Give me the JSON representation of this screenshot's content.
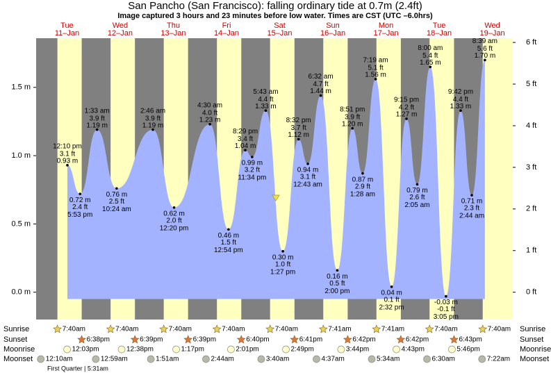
{
  "chart_data": {
    "type": "tide",
    "title": "San Pancho (San Francisco): falling  ordinary tide at 0.7m (2.4ft)",
    "subtitle": "Image captured 3 hours and 23 minutes before low water. Times are CST (UTC –6.0hrs)",
    "days": [
      {
        "weekday": "Tue",
        "date": "11–Jan"
      },
      {
        "weekday": "Wed",
        "date": "12–Jan"
      },
      {
        "weekday": "Thu",
        "date": "13–Jan"
      },
      {
        "weekday": "Fri",
        "date": "14–Jan"
      },
      {
        "weekday": "Sat",
        "date": "15–Jan"
      },
      {
        "weekday": "Sun",
        "date": "16–Jan"
      },
      {
        "weekday": "Mon",
        "date": "17–Jan"
      },
      {
        "weekday": "Tue",
        "date": "18–Jan"
      },
      {
        "weekday": "Wed",
        "date": "19–Jan"
      }
    ],
    "ylim": [
      -0.2,
      1.86
    ],
    "yticks": [
      {
        "value": 0,
        "label": "0.0 m"
      },
      {
        "value": 0.5,
        "label": "0.5 m"
      },
      {
        "value": 1,
        "label": "1.0 m"
      },
      {
        "value": 1.5,
        "label": "1.5 m"
      }
    ],
    "y2lim": [
      -0.656,
      6.102
    ],
    "y2ticks": [
      {
        "value": 0,
        "label": "0 ft"
      },
      {
        "value": 1,
        "label": "1 ft"
      },
      {
        "value": 2,
        "label": "2 ft"
      },
      {
        "value": 3,
        "label": "3 ft"
      },
      {
        "value": 4,
        "label": "4 ft"
      },
      {
        "value": 5,
        "label": "5 ft"
      },
      {
        "value": 6,
        "label": "6 ft"
      }
    ],
    "tide": {
      "color": "#a3b3ff",
      "times": [
        "12:10 pm",
        "5:53 pm",
        "1:33 am",
        "10:24 am",
        "2:46 am",
        "12:20 pm",
        "4:30 am",
        "12:54 pm",
        "8:29 pm",
        "11:34 pm",
        "5:43 am",
        "1:27 pm",
        "8:32 pm",
        "12:43 am",
        "6:32 am",
        "2:00 pm",
        "8:51 pm",
        "1:28 am",
        "7:19 am",
        "2:32 pm",
        "9:15 pm",
        "2:05 am",
        "8:00 am",
        "3:05 pm",
        "9:42 pm",
        "2:44 am",
        "8:39 am"
      ],
      "values": [
        0.93,
        0.72,
        1.19,
        0.76,
        1.19,
        0.62,
        1.23,
        0.46,
        1.04,
        0.99,
        1.33,
        0.3,
        1.12,
        0.94,
        1.44,
        0.16,
        1.2,
        0.87,
        1.56,
        0.04,
        1.27,
        0.79,
        1.65,
        -0.03,
        1.33,
        0.71,
        1.7
      ],
      "value_labels": [
        "0.93 m",
        "0.72 m",
        "1.19 m",
        "0.76 m",
        "1.19 m",
        "0.62 m",
        "1.23 m",
        "0.46 m",
        "1.04 m",
        "0.99 m",
        "1.33 m",
        "0.30 m",
        "1.12 m",
        "0.94 m",
        "1.44 m",
        "0.16 m",
        "1.20 m",
        "0.87 m",
        "1.56 m",
        "0.04 m",
        "1.27 m",
        "0.79 m",
        "1.65 m",
        "-0.03 m",
        "1.33 m",
        "0.71 m",
        "1.70 m"
      ],
      "feet": [
        3.1,
        2.4,
        3.9,
        2.5,
        3.9,
        2.0,
        4.0,
        1.5,
        3.4,
        3.2,
        4.4,
        1.0,
        3.7,
        3.1,
        4.7,
        0.5,
        3.9,
        2.9,
        5.1,
        0.1,
        4.2,
        2.6,
        5.4,
        -0.1,
        4.4,
        2.3,
        5.6
      ],
      "feet_labels": [
        "3.1 ft",
        "2.4 ft",
        "3.9 ft",
        "2.5 ft",
        "3.9 ft",
        "2.0 ft",
        "4.0 ft",
        "1.5 ft",
        "3.4 ft",
        "3.2 ft",
        "4.4 ft",
        "1.0 ft",
        "3.7 ft",
        "3.1 ft",
        "4.7 ft",
        "0.5 ft",
        "3.9 ft",
        "2.9 ft",
        "5.1 ft",
        "0.1 ft",
        "4.2 ft",
        "2.6 ft",
        "5.4 ft",
        "-0.1 ft",
        "4.4 ft",
        "2.3 ft",
        "5.6 ft"
      ]
    },
    "rows": {
      "sunrise": {
        "label": "Sunrise",
        "color": "#e8d25a",
        "times": [
          "7:40am",
          "7:40am",
          "7:40am",
          "7:40am",
          "7:40am",
          "7:41am",
          "7:41am",
          "7:40am",
          "7:40am"
        ]
      },
      "sunset": {
        "label": "Sunset",
        "color": "#e0753a",
        "times": [
          "6:38pm",
          "6:39pm",
          "6:39pm",
          "6:40pm",
          "6:41pm",
          "6:42pm",
          "6:42pm",
          "6:43pm"
        ]
      },
      "moonrise": {
        "label": "Moonrise",
        "color": "#ffffcc",
        "times": [
          "12:03pm",
          "12:38pm",
          "1:17pm",
          "2:01pm",
          "2:49pm",
          "3:44pm",
          "4:43pm",
          "5:46pm"
        ]
      },
      "moonset": {
        "label": "Moonset",
        "color": "#b8b8a8",
        "times": [
          "12:10am",
          "12:59am",
          "1:51am",
          "2:44am",
          "3:40am",
          "4:37am",
          "5:34am",
          "6:30am",
          "7:22am"
        ]
      }
    },
    "moon_phase": "First Quarter | 5:31am",
    "day_color": "#ffffc0",
    "night_color": "#808080",
    "weekday_color": "#cc0000"
  }
}
